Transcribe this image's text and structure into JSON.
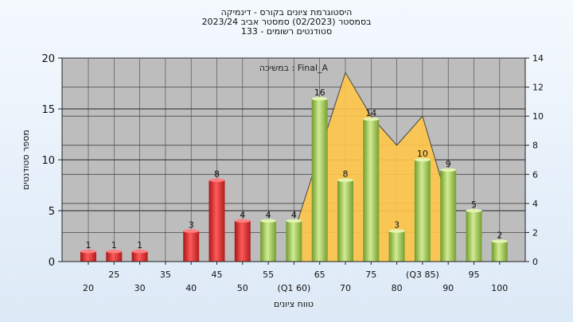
{
  "header": {
    "title": "היסטוגרמת ציונים בקורס - דינמיקה",
    "subtitle": "בסמסטר  (02/2023)  סמסטר אביב 2023/24",
    "students": "סטודנטים רשומים - 133"
  },
  "chart_data": {
    "type": "bar",
    "annotation": "Final_A : במשיכה",
    "xlabel": "טווח ציונים",
    "ylabel": "מספר סטודנטים",
    "ylim": [
      0,
      20
    ],
    "y2lim": [
      0,
      14
    ],
    "yticks": [
      0,
      5,
      10,
      15,
      20
    ],
    "y2ticks": [
      0,
      2,
      4,
      6,
      8,
      10,
      12,
      14
    ],
    "grid": true,
    "categories": [
      "20",
      "25",
      "30",
      "35",
      "40",
      "45",
      "50",
      "55",
      "(Q1 60)",
      "65",
      "70",
      "75",
      "80",
      "(Q3 85)",
      "90",
      "95",
      "100"
    ],
    "values": [
      1,
      1,
      1,
      0,
      3,
      8,
      4,
      4,
      4,
      16,
      8,
      14,
      3,
      10,
      9,
      5,
      2
    ],
    "data_labels": [
      "1",
      "1",
      "1",
      "",
      "3",
      "8",
      "4",
      "4",
      "4",
      "16",
      "8",
      "14",
      "3",
      "10",
      "9",
      "5",
      "2"
    ],
    "bar_colors": [
      "red",
      "red",
      "red",
      "red",
      "red",
      "red",
      "red",
      "green",
      "green",
      "green",
      "green",
      "green",
      "green",
      "green",
      "green",
      "green",
      "green"
    ],
    "area_series": [
      {
        "x": "(Q1 60)",
        "y2": 0
      },
      {
        "x": "(Q1 60)",
        "y2": 2
      },
      {
        "x": "65",
        "y2": 7.5
      },
      {
        "x": "70",
        "y2": 13
      },
      {
        "x": "75",
        "y2": 10
      },
      {
        "x": "80",
        "y2": 8
      },
      {
        "x": "(Q3 85)",
        "y2": 10
      },
      {
        "x": "90",
        "y2": 4
      },
      {
        "x": "90",
        "y2": 0
      }
    ],
    "colors": {
      "red": "#e03030",
      "green": "#9ec44e",
      "area": "#ffc64a",
      "plot_bg": "#bdbdbd"
    }
  }
}
